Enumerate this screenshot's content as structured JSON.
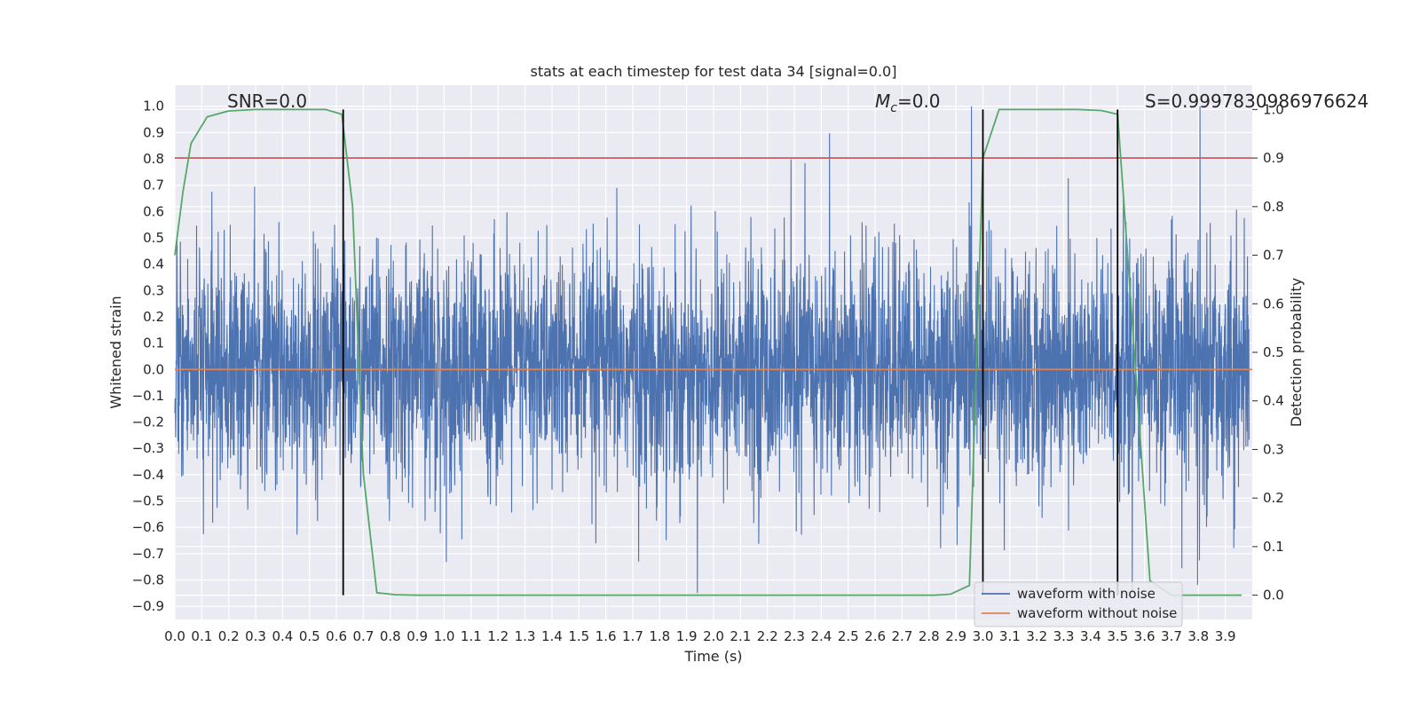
{
  "chart_data": {
    "type": "line",
    "title": "stats at each timestep for test data 34 [signal=0.0]",
    "xlabel": "Time (s)",
    "ylabel": "Whitened strain",
    "y2label": "Detection probability",
    "xlim": [
      0.0,
      4.0
    ],
    "ylim": [
      -0.95,
      1.08
    ],
    "y2lim": [
      -0.05,
      1.05
    ],
    "xticks": [
      "0.0",
      "0.1",
      "0.2",
      "0.3",
      "0.4",
      "0.5",
      "0.6",
      "0.7",
      "0.8",
      "0.9",
      "1.0",
      "1.1",
      "1.2",
      "1.3",
      "1.4",
      "1.5",
      "1.6",
      "1.7",
      "1.8",
      "1.9",
      "2.0",
      "2.1",
      "2.2",
      "2.3",
      "2.4",
      "2.5",
      "2.6",
      "2.7",
      "2.8",
      "2.9",
      "3.0",
      "3.1",
      "3.2",
      "3.3",
      "3.4",
      "3.5",
      "3.6",
      "3.7",
      "3.8",
      "3.9"
    ],
    "yticks": [
      "1.0",
      "0.9",
      "0.8",
      "0.7",
      "0.6",
      "0.5",
      "0.4",
      "0.3",
      "0.2",
      "0.1",
      "0.0",
      "-0.1",
      "-0.2",
      "-0.3",
      "-0.4",
      "-0.5",
      "-0.6",
      "-0.7",
      "-0.8",
      "-0.9"
    ],
    "y2ticks": [
      "1.0",
      "0.9",
      "0.8",
      "0.7",
      "0.6",
      "0.5",
      "0.4",
      "0.3",
      "0.2",
      "0.1",
      "0.0"
    ],
    "grid": true,
    "legend_position": "lower-right",
    "colors": {
      "waveform_with_noise": "#4c72b0",
      "waveform_without_noise": "#dd8452",
      "detection_probability": "#55a868",
      "threshold": "#c44e52",
      "markers": "#000000",
      "axes_bg": "#eaeaf2"
    },
    "series": [
      {
        "name": "waveform with noise",
        "kind": "noise",
        "amplitude_range": [
          -0.85,
          1.0
        ]
      },
      {
        "name": "waveform without noise",
        "kind": "constant",
        "y": 0.0
      },
      {
        "axis": "right",
        "kind": "probability",
        "x": [
          0.0,
          0.03,
          0.06,
          0.12,
          0.2,
          0.3,
          0.4,
          0.5,
          0.56,
          0.62,
          0.66,
          0.7,
          0.75,
          0.82,
          0.9,
          1.2,
          1.5,
          1.8,
          2.1,
          2.4,
          2.7,
          2.82,
          2.88,
          2.95,
          3.0,
          3.06,
          3.2,
          3.35,
          3.44,
          3.5,
          3.55,
          3.62,
          3.7,
          3.8,
          3.9,
          3.96
        ],
        "y": [
          0.7,
          0.83,
          0.93,
          0.985,
          0.997,
          1.0,
          1.0,
          1.0,
          1.0,
          0.99,
          0.8,
          0.25,
          0.005,
          0.001,
          0.0,
          0.0,
          0.0,
          0.0,
          0.0,
          0.0,
          0.0,
          0.0,
          0.002,
          0.02,
          0.9,
          1.0,
          1.0,
          1.0,
          0.998,
          0.99,
          0.6,
          0.03,
          0.0,
          0.0,
          0.0,
          0.0
        ]
      }
    ],
    "threshold_line": {
      "axis": "right",
      "y": 0.9
    },
    "vertical_markers": [
      0.625,
      3.0,
      3.5
    ],
    "annotations": [
      {
        "text": "SNR=0.0",
        "x": 0.2
      },
      {
        "text_main": "M",
        "text_sub": "c",
        "text_rest": "=0.0",
        "x": 2.6
      },
      {
        "text": "S=0.9997830986976624",
        "x": 3.6
      }
    ],
    "legend": [
      "waveform with noise",
      "waveform without noise"
    ]
  }
}
